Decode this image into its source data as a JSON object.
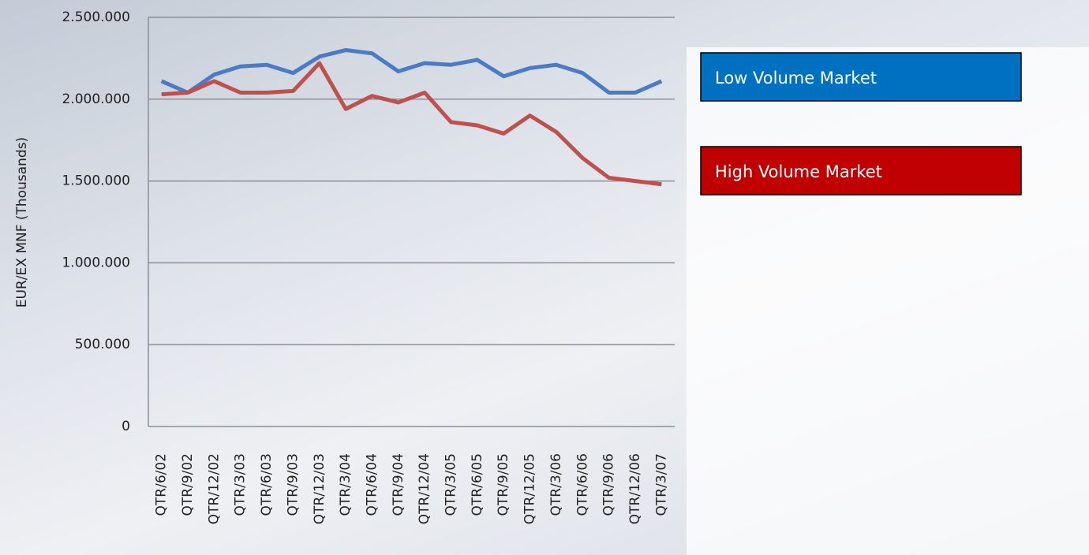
{
  "chart_data": {
    "type": "line",
    "y_label": "EUR/EX MNF (Thousands)",
    "categories": [
      "QTR/6/02",
      "QTR/9/02",
      "QTR/12/02",
      "QTR/3/03",
      "QTR/6/03",
      "QTR/9/03",
      "QTR/12/03",
      "QTR/3/04",
      "QTR/6/04",
      "QTR/9/04",
      "QTR/12/04",
      "QTR/3/05",
      "QTR/6/05",
      "QTR/9/05",
      "QTR/12/05",
      "QTR/3/06",
      "QTR/6/06",
      "QTR/9/06",
      "QTR/12/06",
      "QTR/3/07"
    ],
    "series": [
      {
        "name": "Low Volume Market",
        "color": "#4a7bc4",
        "values": [
          2110000,
          2040000,
          2150000,
          2200000,
          2210000,
          2160000,
          2260000,
          2300000,
          2280000,
          2170000,
          2220000,
          2210000,
          2240000,
          2140000,
          2190000,
          2210000,
          2160000,
          2040000,
          2040000,
          2110000
        ]
      },
      {
        "name": "High Volume Market",
        "color": "#c0504d",
        "values": [
          2030000,
          2040000,
          2110000,
          2040000,
          2040000,
          2050000,
          2220000,
          1940000,
          2020000,
          1980000,
          2040000,
          1860000,
          1840000,
          1790000,
          1900000,
          1800000,
          1640000,
          1520000,
          1500000,
          1480000
        ]
      }
    ],
    "legend_colors": [
      "#0070c0",
      "#c00000"
    ],
    "ylim": [
      0,
      2500000
    ],
    "yticks": [
      0,
      {
        "value": 500000,
        "label": "500.000"
      },
      {
        "value": 1000000,
        "label": "1.000.000"
      },
      {
        "value": 1500000,
        "label": "1.500.000"
      },
      {
        "value": 2000000,
        "label": "2.000.000"
      },
      {
        "value": 2500000,
        "label": "2.500.000"
      }
    ],
    "grid": true,
    "legend": "right"
  }
}
